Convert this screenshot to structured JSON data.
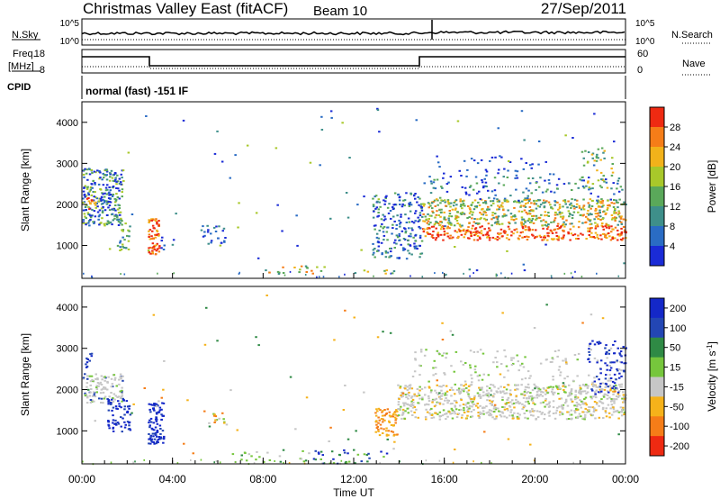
{
  "header": {
    "title": "Christmas Valley East (fitACF)",
    "beam": "Beam 10",
    "date": "27/Sep/2011"
  },
  "param_panels": {
    "nsky_label": "N.Sky",
    "nsky_ticks": [
      "10^5",
      "10^0"
    ],
    "nsearch_label": "N.Search",
    "nsearch_ticks": [
      "10^5",
      "10^0"
    ],
    "freq_label": "Freq.",
    "freq_unit": "[MHz]",
    "freq_ticks": [
      "18",
      "8"
    ],
    "nave_label": "Nave",
    "nave_ticks": [
      "60",
      "0"
    ],
    "cpid_label": "CPID",
    "cpid_text": "normal (fast) -151 IF"
  },
  "colors": {
    "power_scale": [
      "#1a2bd6",
      "#2a6cc4",
      "#3e8f8a",
      "#5aa85a",
      "#a8c82a",
      "#f2b21a",
      "#f57d18",
      "#ee2a12"
    ],
    "velocity_scale": [
      "#1428c8",
      "#2346b4",
      "#2f8a45",
      "#76c63c",
      "#c6c6c6",
      "#f5b21a",
      "#f57d18",
      "#ee2a12"
    ]
  },
  "chart_data": [
    {
      "type": "heatmap",
      "title": "Power",
      "ylabel": "Slant Range [km]",
      "yticks": [
        "1000",
        "2000",
        "3000",
        "4000"
      ],
      "ylim": [
        200,
        4500
      ],
      "xlim": [
        "00:00",
        "24:00"
      ],
      "colorbar_label": "Power [dB]",
      "colorbar_ticks": [
        "4",
        "8",
        "12",
        "16",
        "20",
        "24",
        "28"
      ],
      "colorbar_range": [
        0,
        32
      ]
    },
    {
      "type": "heatmap",
      "title": "Velocity",
      "ylabel": "Slant Range [km]",
      "yticks": [
        "1000",
        "2000",
        "3000",
        "4000"
      ],
      "ylim": [
        200,
        4500
      ],
      "xlim": [
        "00:00",
        "24:00"
      ],
      "colorbar_label": "Velocity [m s",
      "colorbar_label_sup": "-1",
      "colorbar_label_end": "]",
      "colorbar_ticks": [
        "200",
        "100",
        "50",
        "15",
        "-15",
        "-50",
        "-100",
        "-200"
      ]
    }
  ],
  "xaxis": {
    "ticks": [
      "00:00",
      "04:00",
      "08:00",
      "12:00",
      "16:00",
      "20:00",
      "00:00"
    ],
    "label": "Time UT"
  }
}
